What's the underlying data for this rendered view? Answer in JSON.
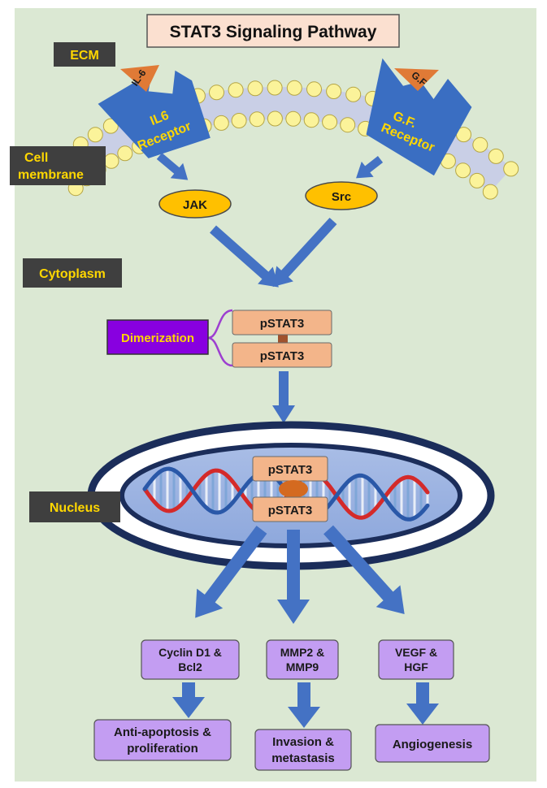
{
  "title": "STAT3 Signaling Pathway",
  "regions": {
    "ecm": "ECM",
    "cell_membrane": [
      "Cell",
      "membrane"
    ],
    "cytoplasm": "Cytoplasm",
    "nucleus": "Nucleus"
  },
  "ligands": {
    "il6": "IL-6",
    "gf": "G.F"
  },
  "receptors": {
    "il6": [
      "IL6",
      "Receptor"
    ],
    "gf": [
      "G.F.",
      "Receptor"
    ]
  },
  "kinases": {
    "jak": "JAK",
    "src": "Src"
  },
  "dimer": {
    "top": "pSTAT3",
    "bottom": "pSTAT3",
    "label": "Dimerization"
  },
  "nuclear_dimer": {
    "top": "pSTAT3",
    "bottom": "pSTAT3"
  },
  "targets": [
    {
      "gene": [
        "Cyclin D1 &",
        "Bcl2"
      ],
      "outcome": [
        "Anti-apoptosis &",
        "proliferation"
      ]
    },
    {
      "gene": [
        "MMP2 &",
        "MMP9"
      ],
      "outcome": [
        "Invasion &",
        "metastasis"
      ]
    },
    {
      "gene": [
        "VEGF &",
        "HGF"
      ],
      "outcome": [
        "Angiogenesis"
      ]
    }
  ],
  "colors": {
    "background": "#dbe8d3",
    "label_box": "#3f3f3f",
    "label_text": "#ffd700",
    "receptor": "#3a6ec2",
    "kinase": "#ffc000",
    "pstat": "#f3b58a",
    "target": "#c39df2",
    "arrow": "#4472c4",
    "dimerization": "#8800e0"
  }
}
